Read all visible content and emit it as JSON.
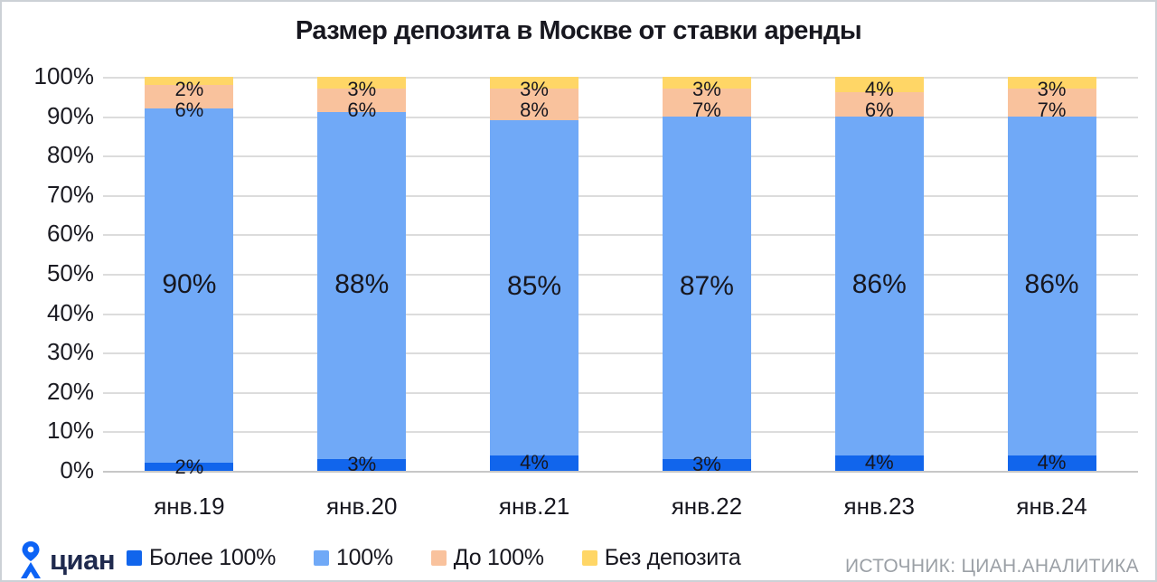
{
  "title": "Размер депозита в Москве от ставки аренды",
  "source": "ИСТОЧНИК: ЦИАН.АНАЛИТИКА",
  "logo": {
    "text": "циан"
  },
  "colors": {
    "dark_blue": "#1165ec",
    "light_blue": "#70a9f7",
    "peach": "#f9c29d",
    "yellow": "#ffd666",
    "grid": "#dcdcdc",
    "text": "#17171f",
    "source_text": "#9ba0a6",
    "logo_navy": "#1f2a4e",
    "logo_blue": "#0d63f5"
  },
  "chart_data": {
    "type": "bar",
    "subtype": "stacked-100",
    "title": "Размер депозита в Москве от ставки аренды",
    "categories": [
      "янв.19",
      "янв.20",
      "янв.21",
      "янв.22",
      "янв.23",
      "янв.24"
    ],
    "series": [
      {
        "name": "Более 100%",
        "color_key": "dark_blue",
        "values": [
          2,
          3,
          4,
          3,
          4,
          4
        ]
      },
      {
        "name": "100%",
        "color_key": "light_blue",
        "values": [
          90,
          88,
          85,
          87,
          86,
          86
        ]
      },
      {
        "name": "До 100%",
        "color_key": "peach",
        "values": [
          6,
          6,
          8,
          7,
          6,
          7
        ]
      },
      {
        "name": "Без депозита",
        "color_key": "yellow",
        "values": [
          2,
          3,
          3,
          3,
          4,
          3
        ]
      }
    ],
    "data_labels": {
      "янв.19": {
        "Более 100%": "2%",
        "100%": "90%",
        "До 100%": "6%",
        "Без депозита": "2%"
      },
      "янв.20": {
        "Более 100%": "3%",
        "100%": "88%",
        "До 100%": "6%",
        "Без депозита": "3%"
      },
      "янв.21": {
        "Более 100%": "4%",
        "100%": "85%",
        "До 100%": "8%",
        "Без депозита": "3%"
      },
      "янв.22": {
        "Более 100%": "3%",
        "100%": "87%",
        "До 100%": "7%",
        "Без депозита": "3%"
      },
      "янв.23": {
        "Более 100%": "4%",
        "100%": "86%",
        "До 100%": "6%",
        "Без депозита": "4%"
      },
      "янв.24": {
        "Более 100%": "4%",
        "100%": "86%",
        "До 100%": "7%",
        "Без депозита": "3%"
      }
    },
    "xlabel": "",
    "ylabel": "",
    "ylim": [
      0,
      100
    ],
    "y_ticks": [
      "0%",
      "10%",
      "20%",
      "30%",
      "40%",
      "50%",
      "60%",
      "70%",
      "80%",
      "90%",
      "100%"
    ],
    "grid": true,
    "legend_position": "bottom"
  }
}
